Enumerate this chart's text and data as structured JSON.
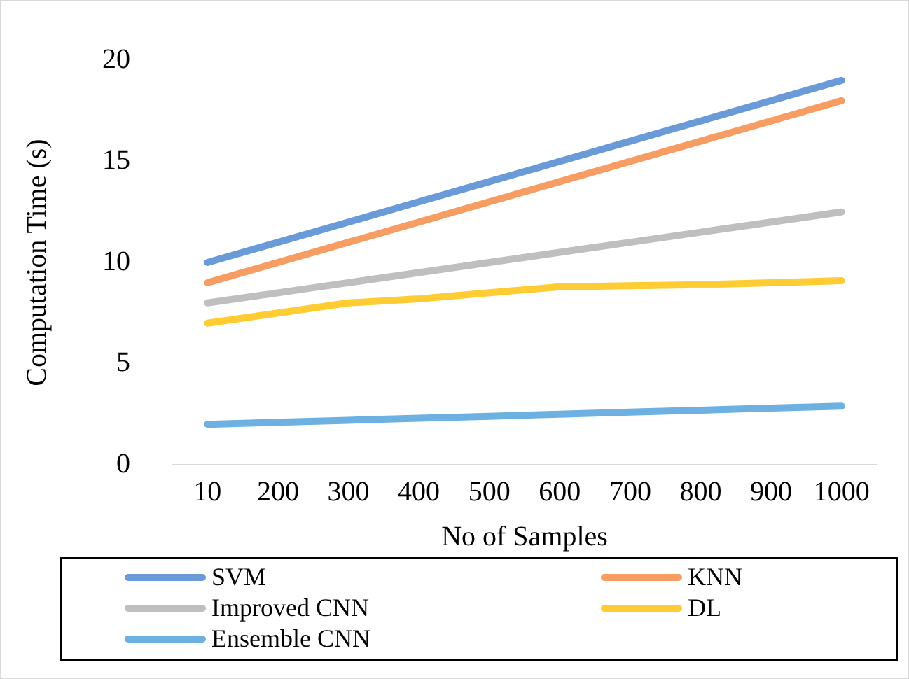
{
  "chart_data": {
    "type": "line",
    "xlabel": "No of Samples",
    "ylabel": "Computation Time (s)",
    "categories": [
      "10",
      "200",
      "300",
      "400",
      "500",
      "600",
      "700",
      "800",
      "900",
      "1000"
    ],
    "series": [
      {
        "name": "SVM",
        "color": "#6a9bd8",
        "values": [
          10,
          11,
          12,
          13,
          14,
          15,
          16,
          17,
          18,
          19
        ]
      },
      {
        "name": "KNN",
        "color": "#f79c62",
        "values": [
          9,
          10,
          11,
          12,
          13,
          14,
          15,
          16,
          17,
          18
        ]
      },
      {
        "name": "Improved CNN",
        "color": "#bfbfbf",
        "values": [
          8,
          8.5,
          9,
          9.5,
          10,
          10.5,
          11,
          11.5,
          12,
          12.5
        ]
      },
      {
        "name": "DL",
        "color": "#ffcc33",
        "values": [
          7,
          7.5,
          8,
          8.2,
          8.5,
          8.8,
          8.85,
          8.9,
          9,
          9.1
        ]
      },
      {
        "name": "Ensemble CNN",
        "color": "#6cb1e1",
        "values": [
          2,
          2.1,
          2.2,
          2.3,
          2.4,
          2.5,
          2.6,
          2.7,
          2.8,
          2.9
        ]
      }
    ],
    "ylim": [
      0,
      20
    ],
    "yticks": [
      0,
      5,
      10,
      15,
      20
    ],
    "grid": false,
    "legend": "bottom",
    "marker": "none",
    "line_style": "solid"
  }
}
